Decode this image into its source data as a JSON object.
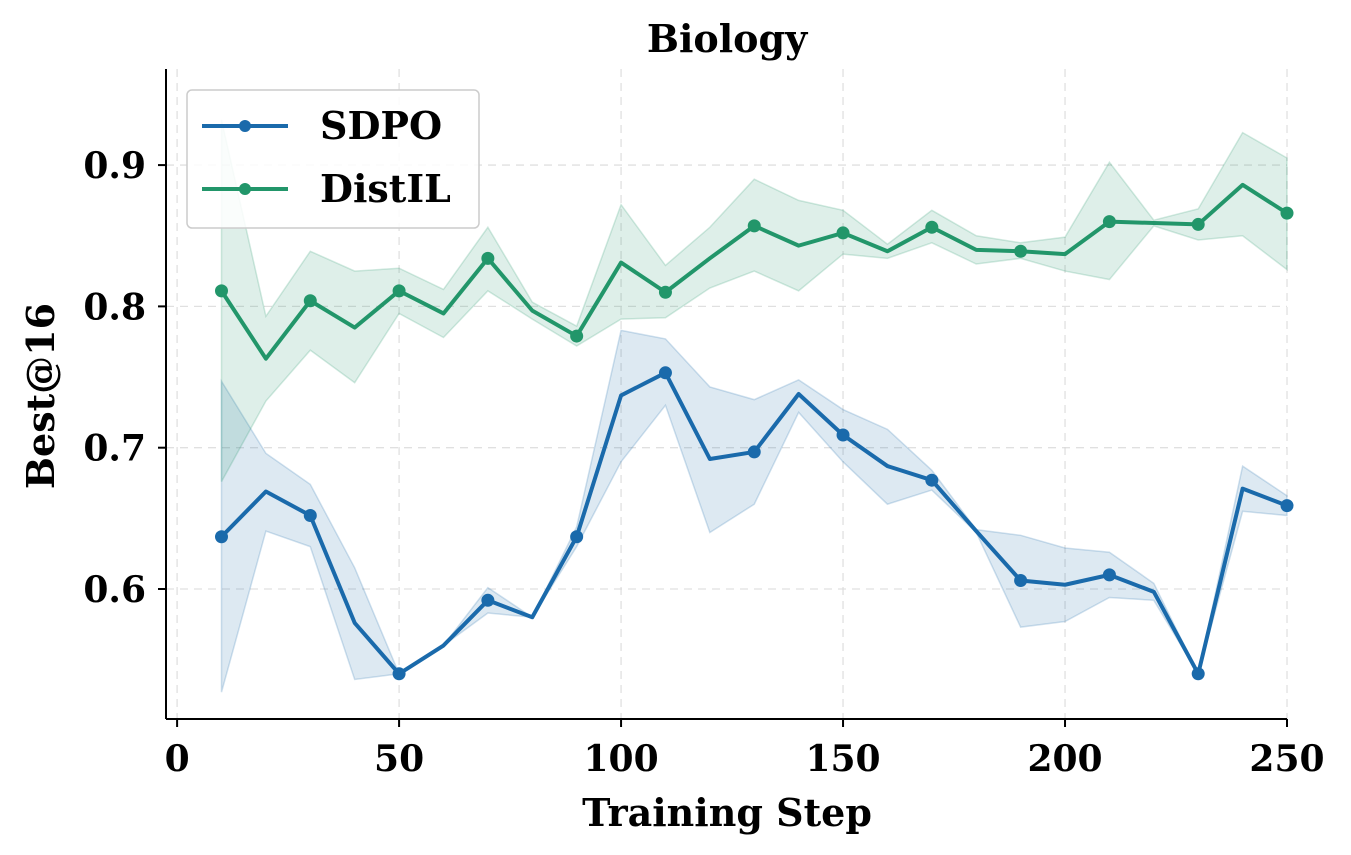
{
  "chart_data": {
    "type": "line",
    "title": "Biology",
    "xlabel": "Training Step",
    "ylabel": "Best@16",
    "xlim": [
      -2.5,
      250
    ],
    "ylim": [
      0.508,
      0.968
    ],
    "xticks": [
      0,
      50,
      100,
      150,
      200,
      250
    ],
    "yticks": [
      0.6,
      0.7,
      0.8,
      0.9
    ],
    "xtick_labels": [
      "0",
      "50",
      "100",
      "150",
      "200",
      "250"
    ],
    "ytick_labels": [
      "0.6",
      "0.7",
      "0.8",
      "0.9"
    ],
    "grid": true,
    "legend_position": "top-left",
    "series": [
      {
        "name": "SDPO",
        "color": "#1a6aab",
        "x": [
          10,
          20,
          30,
          40,
          50,
          60,
          70,
          80,
          90,
          100,
          110,
          120,
          130,
          140,
          150,
          160,
          170,
          180,
          190,
          200,
          210,
          220,
          230,
          240,
          250
        ],
        "y": [
          0.637,
          0.669,
          0.652,
          0.576,
          0.54,
          0.56,
          0.592,
          0.58,
          0.637,
          0.737,
          0.753,
          0.692,
          0.697,
          0.738,
          0.709,
          0.687,
          0.677,
          0.641,
          0.606,
          0.603,
          0.61,
          0.598,
          0.54,
          0.671,
          0.659
        ],
        "markers_at": [
          10,
          30,
          50,
          70,
          90,
          110,
          130,
          150,
          170,
          190,
          210,
          230,
          250
        ],
        "band_low": [
          0.527,
          0.641,
          0.63,
          0.536,
          0.54,
          0.56,
          0.583,
          0.58,
          0.63,
          0.69,
          0.73,
          0.64,
          0.66,
          0.725,
          0.69,
          0.66,
          0.67,
          0.64,
          0.573,
          0.577,
          0.594,
          0.592,
          0.54,
          0.655,
          0.652
        ],
        "band_high": [
          0.747,
          0.696,
          0.674,
          0.615,
          0.54,
          0.56,
          0.601,
          0.58,
          0.644,
          0.783,
          0.777,
          0.743,
          0.734,
          0.748,
          0.727,
          0.713,
          0.684,
          0.642,
          0.638,
          0.629,
          0.626,
          0.604,
          0.54,
          0.687,
          0.666
        ]
      },
      {
        "name": "DistIL",
        "color": "#22966a",
        "x": [
          10,
          20,
          30,
          40,
          50,
          60,
          70,
          80,
          90,
          100,
          110,
          120,
          130,
          140,
          150,
          160,
          170,
          180,
          190,
          200,
          210,
          220,
          230,
          240,
          250
        ],
        "y": [
          0.811,
          0.763,
          0.804,
          0.785,
          0.811,
          0.795,
          0.834,
          0.797,
          0.779,
          0.831,
          0.81,
          0.834,
          0.857,
          0.843,
          0.852,
          0.839,
          0.856,
          0.84,
          0.839,
          0.837,
          0.86,
          0.859,
          0.858,
          0.886,
          0.866
        ],
        "markers_at": [
          10,
          30,
          50,
          70,
          90,
          110,
          130,
          150,
          170,
          190,
          210,
          230,
          250
        ],
        "band_low": [
          0.676,
          0.733,
          0.769,
          0.746,
          0.795,
          0.778,
          0.811,
          0.791,
          0.772,
          0.791,
          0.792,
          0.813,
          0.825,
          0.811,
          0.837,
          0.834,
          0.845,
          0.83,
          0.834,
          0.825,
          0.819,
          0.857,
          0.847,
          0.85,
          0.826
        ],
        "band_high": [
          0.932,
          0.793,
          0.839,
          0.825,
          0.827,
          0.812,
          0.856,
          0.803,
          0.786,
          0.872,
          0.829,
          0.856,
          0.89,
          0.875,
          0.868,
          0.844,
          0.868,
          0.85,
          0.845,
          0.849,
          0.902,
          0.861,
          0.869,
          0.923,
          0.905
        ]
      }
    ]
  }
}
